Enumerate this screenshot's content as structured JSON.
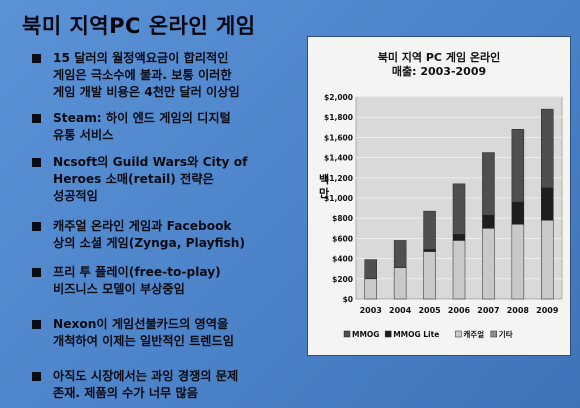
{
  "slide": {
    "title": "북미 지역PC 온라인 게임",
    "bullets": [
      {
        "text": "15 달러의 월정액요금이 합리적인\n게임은 극소수에 불과.  보통 이러한\n게임 개발 비용은 4천만 달러 이상임"
      },
      {
        "text": "Steam: 하이 엔드 게임의 디지털\n유통 서비스"
      },
      {
        "text": "Ncsoft의 Guild Wars와 City of\nHeroes 소매(retail) 전략은\n성공적임"
      },
      {
        "text": "캐주얼 온라인 게임과 Facebook\n상의 소셜 게임(Zynga, Playfish)"
      },
      {
        "text": "프리 투 플레이(free-to-play)\n비즈니스 모델이 부상중임"
      },
      {
        "text": "Nexon이 게임선불카드의 영역을\n개척하여 이제는 일반적인 트렌드임"
      },
      {
        "text": "아직도 시장에서는 과잉 경쟁의 문제\n존재. 제품의 수가 너무 많음"
      }
    ]
  },
  "chart_data": {
    "type": "bar",
    "stacked": true,
    "title": "북미 지역 PC 게임 온라인",
    "subtitle": "매출: 2003-2009",
    "ylabel": "백만",
    "categories": [
      "2003",
      "2004",
      "2005",
      "2006",
      "2007",
      "2008",
      "2009"
    ],
    "ylim": [
      0,
      2000
    ],
    "yticks": [
      "$0",
      "$200",
      "$400",
      "$600",
      "$800",
      "$1,000",
      "$1,200",
      "$1,400",
      "$1,600",
      "$1,800",
      "$2,000"
    ],
    "grid": true,
    "legend_position": "bottom",
    "series": [
      {
        "name": "캐주얼",
        "color": "#c9c9c9",
        "values": [
          200,
          310,
          470,
          580,
          700,
          740,
          780
        ]
      },
      {
        "name": "MMOG Lite",
        "color": "#1e1e1e",
        "values": [
          0,
          0,
          20,
          60,
          130,
          220,
          320
        ]
      },
      {
        "name": "MMOG",
        "color": "#4f4f4f",
        "values": [
          190,
          270,
          380,
          500,
          620,
          720,
          780
        ]
      },
      {
        "name": "기타",
        "color": "#8e8e8e",
        "values": [
          0,
          0,
          0,
          0,
          0,
          0,
          0
        ]
      }
    ],
    "legend_order": [
      "MMOG",
      "MMOG Lite",
      "캐주얼",
      "기타"
    ]
  }
}
